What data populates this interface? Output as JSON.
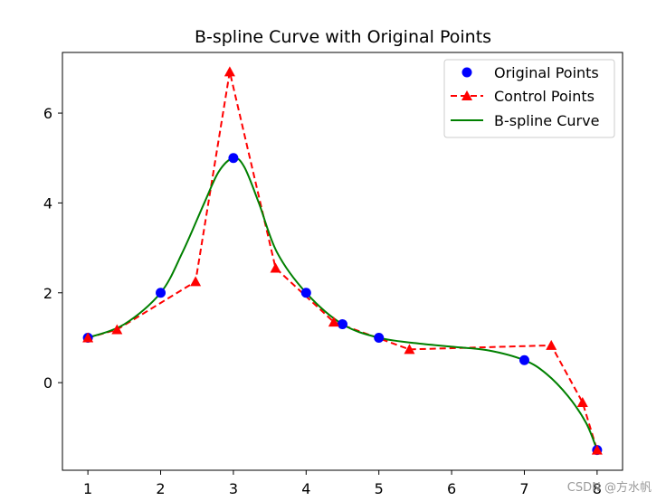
{
  "chart_data": {
    "type": "line",
    "title": "B-spline Curve with Original Points",
    "xlabel": "",
    "ylabel": "",
    "xlim": [
      0.65,
      8.35
    ],
    "ylim": [
      -1.95,
      7.35
    ],
    "xticks": [
      1,
      2,
      3,
      4,
      5,
      6,
      7,
      8
    ],
    "yticks": [
      0,
      2,
      4,
      6
    ],
    "grid": false,
    "legend_position": "top-right",
    "series": [
      {
        "name": "Original Points",
        "style": "markers",
        "marker": "circle",
        "color": "#0000ff",
        "x": [
          1,
          2,
          3,
          4,
          4.5,
          5,
          7,
          8
        ],
        "y": [
          1,
          2,
          5,
          2,
          1.3,
          1,
          0.5,
          -1.5
        ]
      },
      {
        "name": "Control Points",
        "style": "dashed-line-markers",
        "marker": "triangle",
        "color": "#ff0000",
        "x": [
          1,
          1.4,
          2.48,
          2.95,
          3.58,
          4.38,
          5.42,
          7.37,
          7.8,
          8
        ],
        "y": [
          1,
          1.18,
          2.25,
          6.92,
          2.55,
          1.35,
          0.74,
          0.83,
          -0.44,
          -1.5
        ]
      },
      {
        "name": "B-spline Curve",
        "style": "line",
        "color": "#008000",
        "x": [
          1,
          1.5,
          2,
          2.3,
          2.6,
          2.8,
          3,
          3.15,
          3.35,
          3.6,
          4,
          4.5,
          5,
          5.5,
          6,
          6.5,
          7,
          7.3,
          7.6,
          7.85,
          8
        ],
        "y": [
          1,
          1.3,
          2,
          2.9,
          4.0,
          4.7,
          5,
          4.8,
          4.0,
          2.9,
          2,
          1.3,
          1,
          0.88,
          0.8,
          0.72,
          0.5,
          0.2,
          -0.3,
          -0.9,
          -1.5
        ]
      }
    ]
  },
  "watermark": "CSDN @方水帆"
}
